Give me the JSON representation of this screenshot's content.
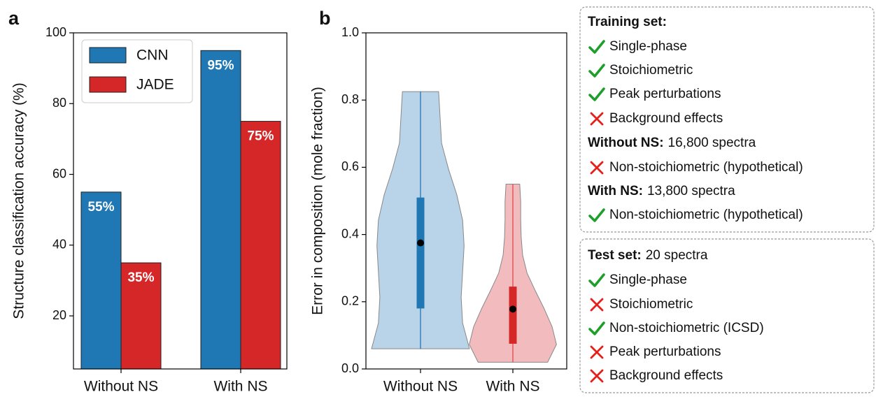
{
  "chart_data": [
    {
      "type": "bar",
      "label": "a",
      "ylabel": "Structure classification accuracy (%)",
      "categories": [
        "Without NS",
        "With NS"
      ],
      "series": [
        {
          "name": "CNN",
          "color": "#1f77b4",
          "values": [
            55,
            95
          ],
          "value_labels": [
            "55%",
            "95%"
          ]
        },
        {
          "name": "JADE",
          "color": "#d62728",
          "values": [
            35,
            75
          ],
          "value_labels": [
            "35%",
            "75%"
          ]
        }
      ],
      "ylim": [
        5,
        100
      ],
      "yticks": [
        20,
        40,
        60,
        80,
        100
      ],
      "legend": "upper left"
    },
    {
      "type": "violin",
      "label": "b",
      "ylabel": "Error in composition (mole fraction)",
      "categories": [
        "Without NS",
        "With NS"
      ],
      "series": [
        {
          "color": "#b9d3e8",
          "line_color": "#1f77b4",
          "min": 0.06,
          "q1": 0.18,
          "median": 0.375,
          "q3": 0.51,
          "max": 0.825,
          "density": [
            1,
            0.86,
            0.83,
            0.86,
            0.89,
            0.86,
            0.74,
            0.57,
            0.43,
            0.4,
            0.37
          ]
        },
        {
          "color": "#f2bcbe",
          "line_color": "#e0464b",
          "min": 0.02,
          "q1": 0.075,
          "median": 0.178,
          "q3": 0.245,
          "max": 0.55,
          "density": [
            0.71,
            0.89,
            0.8,
            0.64,
            0.46,
            0.29,
            0.2,
            0.17,
            0.16,
            0.16,
            0.14
          ]
        }
      ],
      "ylim": [
        0,
        1
      ],
      "yticks": [
        {
          "value": 0,
          "label": "0.0"
        },
        0.2,
        0.4,
        0.6,
        0.8,
        {
          "value": 1,
          "label": "1.0"
        }
      ]
    }
  ],
  "boxes": [
    {
      "lines": [
        {
          "bold": "Training set:"
        },
        {
          "icon": "check",
          "text": "Single-phase"
        },
        {
          "icon": "check",
          "text": "Stoichiometric"
        },
        {
          "icon": "check",
          "text": "Peak perturbations"
        },
        {
          "icon": "cross",
          "text": "Background effects"
        },
        {
          "bold": "Without NS:",
          "text": "16,800 spectra"
        },
        {
          "icon": "cross",
          "text": "Non-stoichiometric (hypothetical)"
        },
        {
          "bold": "With NS:",
          "text": "13,800 spectra"
        },
        {
          "icon": "check",
          "text": "Non-stoichiometric (hypothetical)"
        }
      ]
    },
    {
      "lines": [
        {
          "bold": "Test set:",
          "text": "20 spectra"
        },
        {
          "icon": "check",
          "text": "Single-phase"
        },
        {
          "icon": "cross",
          "text": "Stoichiometric"
        },
        {
          "icon": "check",
          "text": "Non-stoichiometric (ICSD)"
        },
        {
          "icon": "cross",
          "text": "Peak perturbations"
        },
        {
          "icon": "cross",
          "text": "Background effects"
        }
      ]
    }
  ]
}
